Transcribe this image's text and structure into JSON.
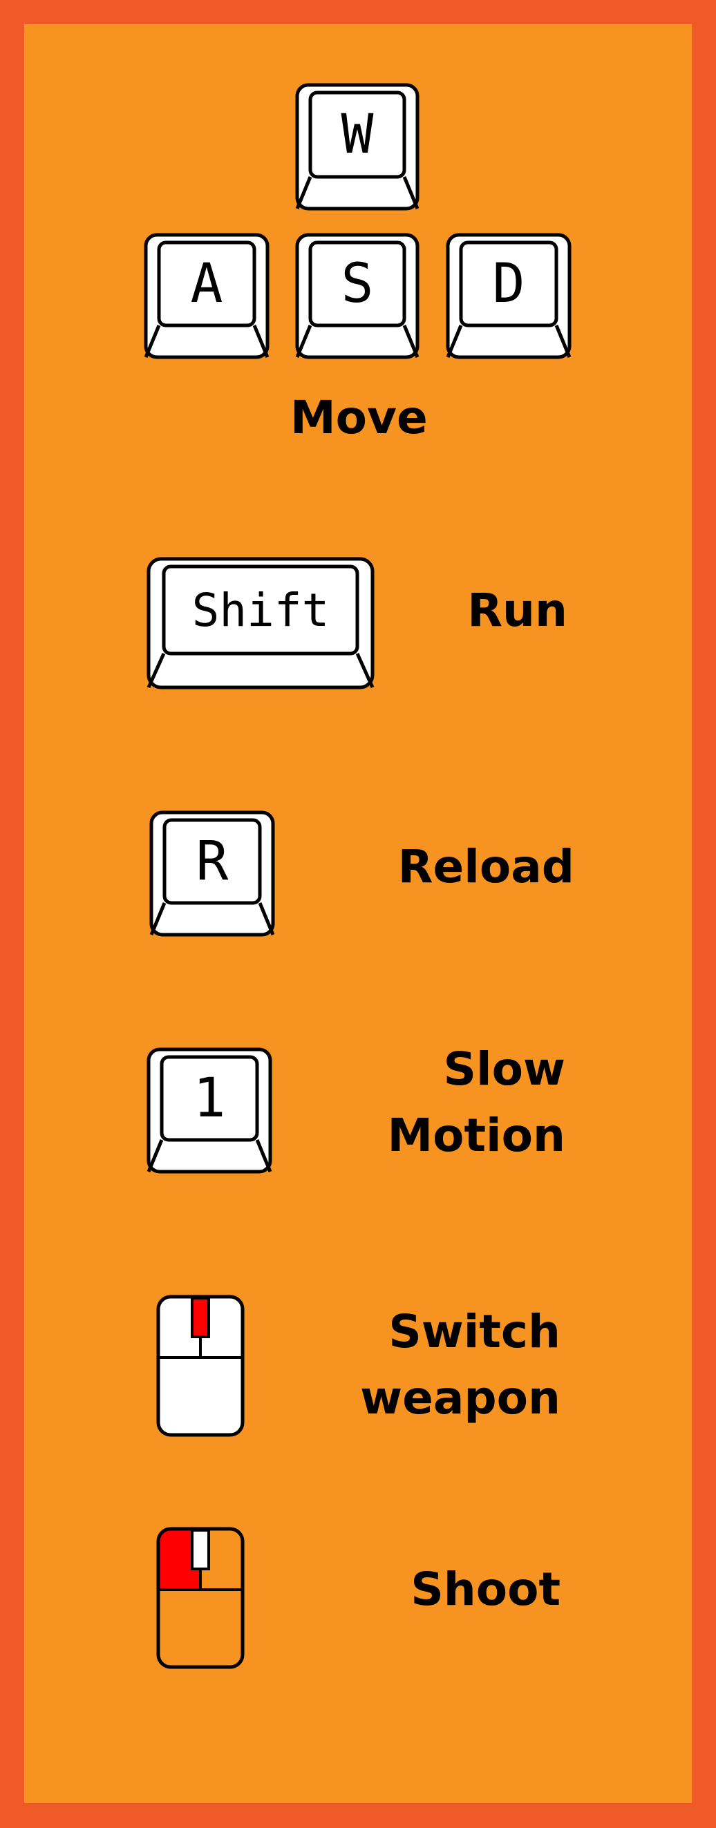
{
  "colors": {
    "border": "#F05A28",
    "panel": "#F79421",
    "key_face": "#FFFFFF",
    "mouse_highlight": "#FF0000"
  },
  "controls": {
    "move": {
      "keys": [
        "W",
        "A",
        "S",
        "D"
      ],
      "label": "Move"
    },
    "run": {
      "key": "Shift",
      "label": "Run"
    },
    "reload": {
      "key": "R",
      "label": "Reload"
    },
    "slow_motion": {
      "key": "1",
      "label_line1": "Slow",
      "label_line2": "Motion"
    },
    "switch_weapon": {
      "icon": "mouse-scroll-wheel-icon",
      "label_line1": "Switch",
      "label_line2": "weapon"
    },
    "shoot": {
      "icon": "mouse-left-button-icon",
      "label": "Shoot"
    }
  }
}
